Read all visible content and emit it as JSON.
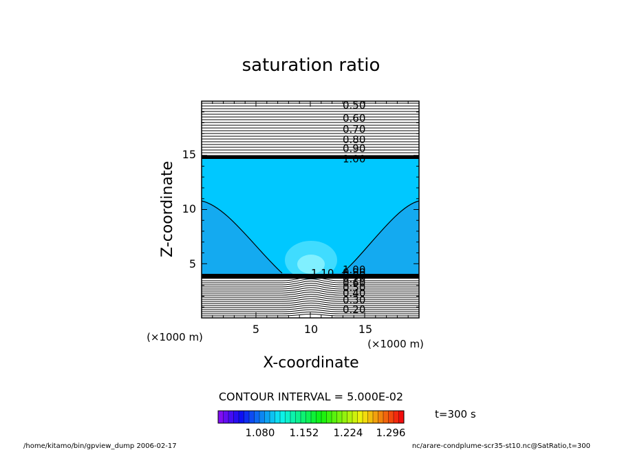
{
  "chart_data": {
    "type": "contour",
    "title": "saturation ratio",
    "xlabel": "X-coordinate",
    "ylabel": "Z-coordinate",
    "x_unit": "(×1000 m)",
    "y_unit": "(×1000 m)",
    "xlim": [
      0,
      20
    ],
    "ylim": [
      0,
      20
    ],
    "x_ticks": [
      "5",
      "10",
      "15"
    ],
    "y_ticks": [
      "5",
      "10",
      "15"
    ],
    "contour_interval_text": "CONTOUR INTERVAL = 5.000E-02",
    "time_label": "t=300 s",
    "colorbar": {
      "tick_labels": [
        "1.080",
        "1.152",
        "1.224",
        "1.296"
      ],
      "range": [
        1.04,
        1.34
      ]
    },
    "contour_labels": [
      "0.50",
      "0.60",
      "0.70",
      "0.80",
      "0.90",
      "1.00",
      "1.10",
      "0.20",
      "0.30",
      "0.40",
      "0.50",
      "0.60",
      "0.70",
      "0.80",
      "0.90",
      "1.00"
    ],
    "fill_colors": {
      "deep_cyan": "#00c8ff",
      "sky_blue": "#14aaf0",
      "light_cyan": "#40dcff",
      "aqua": "#80f0ff"
    },
    "footer_left": "/home/kitamo/bin/gpview_dump  2006-02-17",
    "footer_right": "nc/arare-condplume-scr35-st10.nc@SatRatio,t=300"
  }
}
